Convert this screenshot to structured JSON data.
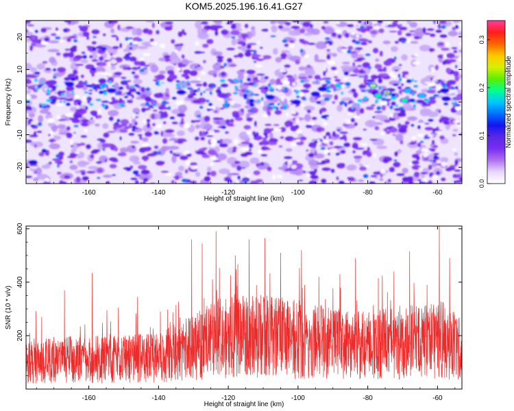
{
  "title": "KOM5.2025.196.16.41.G27",
  "chart_data": [
    {
      "type": "heatmap",
      "xlabel": "Height of straight line (km)",
      "ylabel": "Frequency (Hz)",
      "xlim": [
        -178,
        -53
      ],
      "ylim": [
        -25,
        25
      ],
      "xticks": [
        -160,
        -140,
        -120,
        -100,
        -80,
        -60
      ],
      "yticks": [
        -20,
        -10,
        0,
        10,
        20
      ],
      "colorbar": {
        "label": "Normalized spectral amplitude",
        "range": [
          0.0,
          0.34
        ],
        "ticks": [
          "0.0",
          "0.1",
          "0.2",
          "0.3"
        ],
        "colors": [
          "#ffffff",
          "#e8d8ff",
          "#b070f0",
          "#7a2ef0",
          "#5a28e8",
          "#1515f0",
          "#0070ff",
          "#00c8ff",
          "#00ff90",
          "#5af000",
          "#d8f000",
          "#ffc800",
          "#ff6400",
          "#ff1e1e",
          "#ff3c9a"
        ]
      },
      "hotspots": [
        {
          "x": -74.5,
          "y": 3.0,
          "amplitude": 0.34
        },
        {
          "x": -78.5,
          "y": 5.0,
          "amplitude": 0.24
        },
        {
          "x": -77.0,
          "y": 2.0,
          "amplitude": 0.2
        },
        {
          "x": -69.5,
          "y": 0.5,
          "amplitude": 0.22
        },
        {
          "x": -68.5,
          "y": 3.5,
          "amplitude": 0.18
        },
        {
          "x": -64.5,
          "y": 2.0,
          "amplitude": 0.16
        },
        {
          "x": -58.0,
          "y": 3.5,
          "amplitude": 0.15
        },
        {
          "x": -57.5,
          "y": 1.0,
          "amplitude": 0.12
        },
        {
          "x": -56.0,
          "y": 6.0,
          "amplitude": 0.11
        },
        {
          "x": -93.0,
          "y": 4.0,
          "amplitude": 0.15
        },
        {
          "x": -95.0,
          "y": 2.5,
          "amplitude": 0.12
        },
        {
          "x": -100.5,
          "y": 0.0,
          "amplitude": 0.12
        },
        {
          "x": -108.0,
          "y": 1.5,
          "amplitude": 0.13
        },
        {
          "x": -133.5,
          "y": 3.0,
          "amplitude": 0.12
        },
        {
          "x": -153.5,
          "y": 3.5,
          "amplitude": 0.13
        },
        {
          "x": -165.5,
          "y": 5.5,
          "amplitude": 0.12
        },
        {
          "x": -170.5,
          "y": 6.0,
          "amplitude": 0.11
        },
        {
          "x": -121.5,
          "y": 2.0,
          "amplitude": 0.11
        },
        {
          "x": -140.0,
          "y": 2.0,
          "amplitude": 0.11
        },
        {
          "x": -176.0,
          "y": -18.5,
          "amplitude": 0.12
        }
      ]
    },
    {
      "type": "line",
      "xlabel": "Height of straight line (km)",
      "ylabel": "SNR (10 * v/v)",
      "xlim": [
        -178,
        -53
      ],
      "ylim": [
        0,
        610
      ],
      "xticks": [
        -160,
        -140,
        -120,
        -100,
        -80,
        -60
      ],
      "yticks": [
        200,
        400,
        600
      ],
      "series": [
        {
          "color": "#ee2b2b",
          "baseline": [
            {
              "x": -178,
              "y": 105
            },
            {
              "x": -165,
              "y": 110
            },
            {
              "x": -150,
              "y": 112
            },
            {
              "x": -140,
              "y": 120
            },
            {
              "x": -130,
              "y": 155
            },
            {
              "x": -122,
              "y": 195
            },
            {
              "x": -112,
              "y": 200
            },
            {
              "x": -100,
              "y": 185
            },
            {
              "x": -90,
              "y": 170
            },
            {
              "x": -80,
              "y": 160
            },
            {
              "x": -70,
              "y": 175
            },
            {
              "x": -60,
              "y": 180
            },
            {
              "x": -53,
              "y": 150
            }
          ],
          "peaks": [
            {
              "x": -177.0,
              "y": 210
            },
            {
              "x": -173.5,
              "y": 270
            },
            {
              "x": -167.0,
              "y": 370
            },
            {
              "x": -159.0,
              "y": 435
            },
            {
              "x": -151.5,
              "y": 305
            },
            {
              "x": -146.0,
              "y": 345
            },
            {
              "x": -139.5,
              "y": 290
            },
            {
              "x": -135.0,
              "y": 315
            },
            {
              "x": -130.5,
              "y": 560
            },
            {
              "x": -127.5,
              "y": 545
            },
            {
              "x": -123.5,
              "y": 590
            },
            {
              "x": -118.0,
              "y": 500
            },
            {
              "x": -114.0,
              "y": 560
            },
            {
              "x": -109.5,
              "y": 565
            },
            {
              "x": -105.0,
              "y": 510
            },
            {
              "x": -99.0,
              "y": 520
            },
            {
              "x": -94.0,
              "y": 420
            },
            {
              "x": -88.0,
              "y": 430
            },
            {
              "x": -83.5,
              "y": 490
            },
            {
              "x": -77.0,
              "y": 415
            },
            {
              "x": -72.5,
              "y": 440
            },
            {
              "x": -68.0,
              "y": 515
            },
            {
              "x": -63.0,
              "y": 390
            },
            {
              "x": -59.5,
              "y": 610
            },
            {
              "x": -56.5,
              "y": 490
            }
          ]
        }
      ]
    }
  ]
}
